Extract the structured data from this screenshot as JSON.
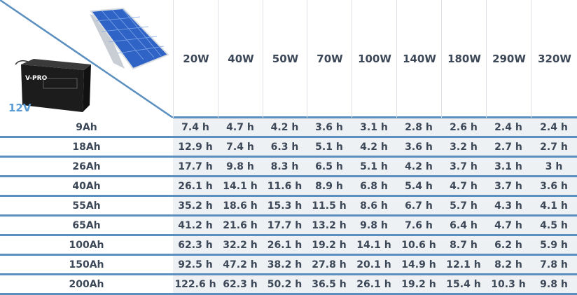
{
  "corner": {
    "voltage_label": "12V",
    "battery_brand": "V-PRO",
    "accent_color": "#5b8fc0"
  },
  "columns": [
    "20W",
    "40W",
    "50W",
    "70W",
    "100W",
    "140W",
    "180W",
    "290W",
    "320W"
  ],
  "rows": [
    {
      "label": "9Ah",
      "values": [
        "7.4 h",
        "4.7 h",
        "4.2 h",
        "3.6 h",
        "3.1 h",
        "2.8 h",
        "2.6 h",
        "2.4 h",
        "2.4 h"
      ]
    },
    {
      "label": "18Ah",
      "values": [
        "12.9 h",
        "7.4 h",
        "6.3 h",
        "5.1 h",
        "4.2 h",
        "3.6 h",
        "3.2 h",
        "2.7 h",
        "2.7 h"
      ]
    },
    {
      "label": "26Ah",
      "values": [
        "17.7 h",
        "9.8 h",
        "8.3 h",
        "6.5 h",
        "5.1 h",
        "4.2 h",
        "3.7 h",
        "3.1 h",
        "3 h"
      ]
    },
    {
      "label": "40Ah",
      "values": [
        "26.1 h",
        "14.1 h",
        "11.6 h",
        "8.9 h",
        "6.8 h",
        "5.4 h",
        "4.7 h",
        "3.7 h",
        "3.6 h"
      ]
    },
    {
      "label": "55Ah",
      "values": [
        "35.2 h",
        "18.6 h",
        "15.3 h",
        "11.5 h",
        "8.6 h",
        "6.7 h",
        "5.7 h",
        "4.3 h",
        "4.1 h"
      ]
    },
    {
      "label": "65Ah",
      "values": [
        "41.2 h",
        "21.6 h",
        "17.7 h",
        "13.2 h",
        "9.8 h",
        "7.6 h",
        "6.4 h",
        "4.7 h",
        "4.5 h"
      ]
    },
    {
      "label": "100Ah",
      "values": [
        "62.3 h",
        "32.2 h",
        "26.1 h",
        "19.2 h",
        "14.1 h",
        "10.6 h",
        "8.7 h",
        "6.2 h",
        "5.9 h"
      ]
    },
    {
      "label": "150Ah",
      "values": [
        "92.5 h",
        "47.2 h",
        "38.2 h",
        "27.8 h",
        "20.1 h",
        "14.9 h",
        "12.1 h",
        "8.2 h",
        "7.8 h"
      ]
    },
    {
      "label": "200Ah",
      "values": [
        "122.6 h",
        "62.3 h",
        "50.2 h",
        "36.5 h",
        "26.1 h",
        "19.2 h",
        "15.4 h",
        "10.3 h",
        "9.8 h"
      ]
    }
  ]
}
